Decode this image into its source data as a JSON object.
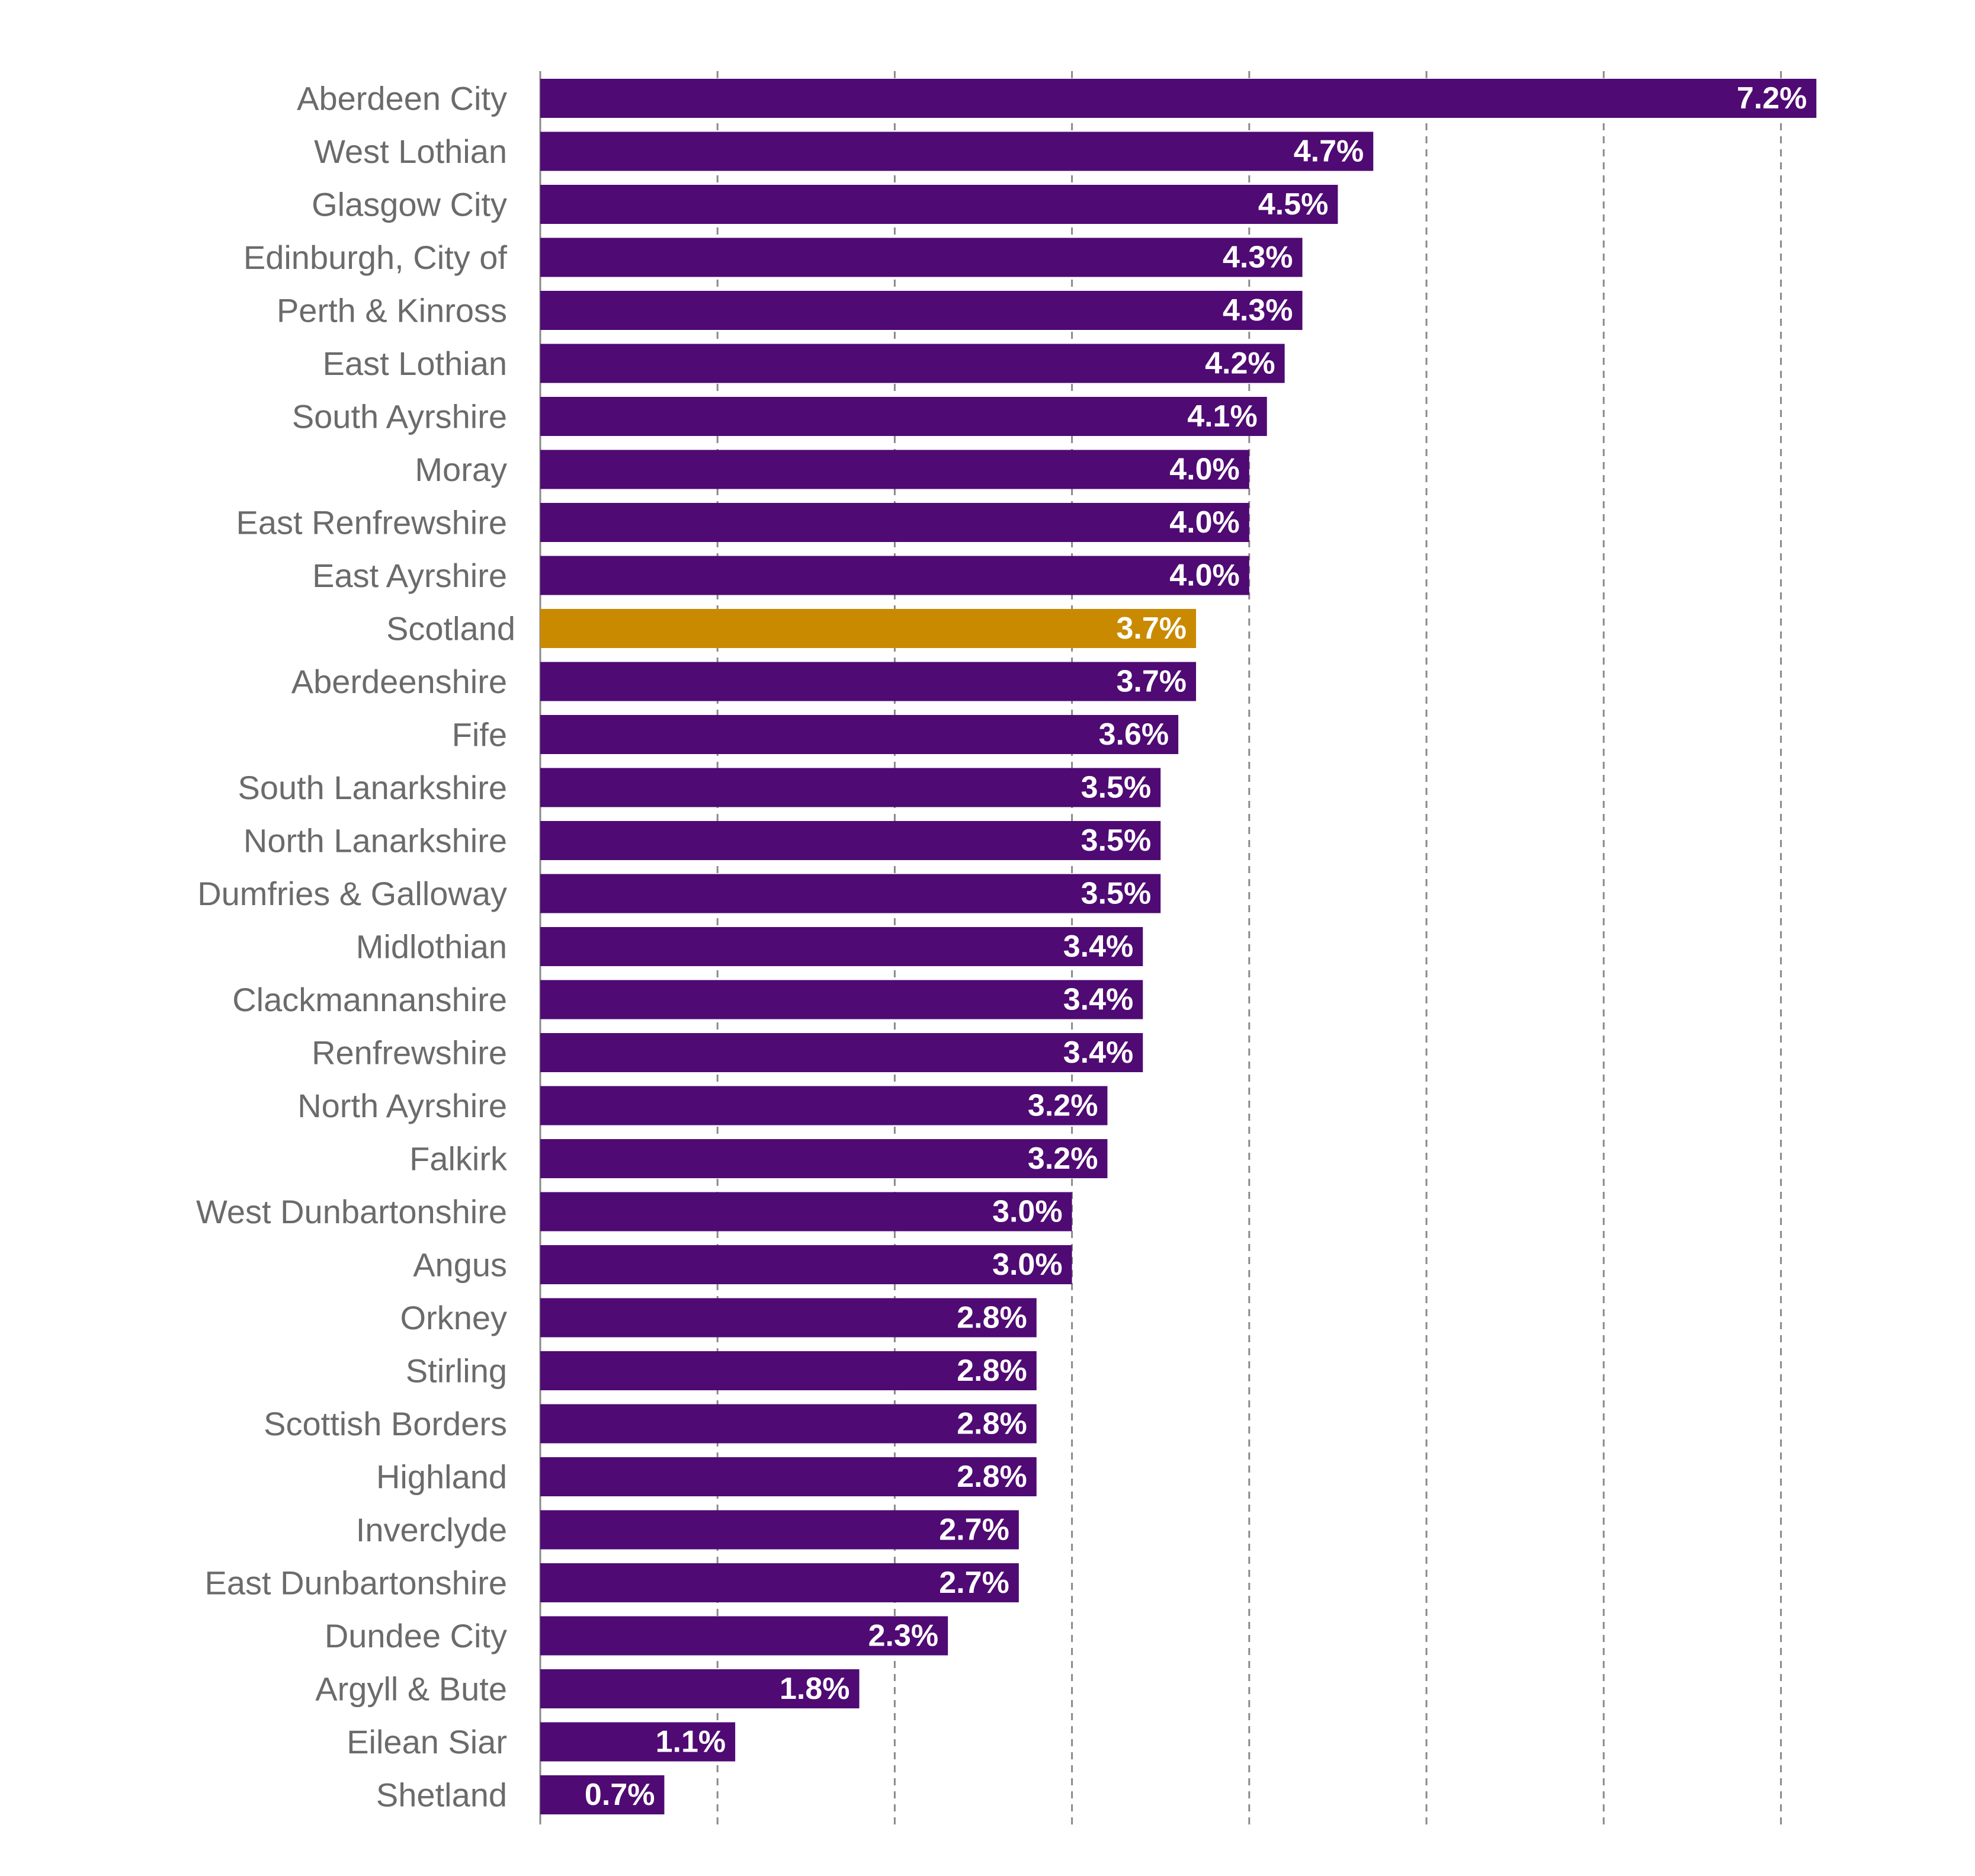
{
  "chart_data": {
    "type": "bar",
    "orientation": "horizontal",
    "title": "",
    "xlabel": "",
    "ylabel": "",
    "xlim": [
      0,
      7.5
    ],
    "grid": true,
    "value_suffix": "%",
    "colors": {
      "default": "#4f0a73",
      "highlight": "#c98a00"
    },
    "highlight_category": "Scotland",
    "categories": [
      "Aberdeen City",
      "West Lothian",
      "Glasgow City",
      "Edinburgh, City of",
      "Perth & Kinross",
      "East Lothian",
      "South Ayrshire",
      "Moray",
      "East Renfrewshire",
      "East Ayrshire",
      "Scotland",
      "Aberdeenshire",
      "Fife",
      "South Lanarkshire",
      "North Lanarkshire",
      "Dumfries & Galloway",
      "Midlothian",
      "Clackmannanshire",
      "Renfrewshire",
      "North Ayrshire",
      "Falkirk",
      "West Dunbartonshire",
      "Angus",
      "Orkney",
      "Stirling",
      "Scottish Borders",
      "Highland",
      "Inverclyde",
      "East Dunbartonshire",
      "Dundee City",
      "Argyll & Bute",
      "Eilean Siar",
      "Shetland"
    ],
    "values": [
      7.2,
      4.7,
      4.5,
      4.3,
      4.3,
      4.2,
      4.1,
      4.0,
      4.0,
      4.0,
      3.7,
      3.7,
      3.6,
      3.5,
      3.5,
      3.5,
      3.4,
      3.4,
      3.4,
      3.2,
      3.2,
      3.0,
      3.0,
      2.8,
      2.8,
      2.8,
      2.8,
      2.7,
      2.7,
      2.3,
      1.8,
      1.1,
      0.7
    ],
    "value_labels": [
      "7.2%",
      "4.7%",
      "4.5%",
      "4.3%",
      "4.3%",
      "4.2%",
      "4.1%",
      "4.0%",
      "4.0%",
      "4.0%",
      "3.7%",
      "3.7%",
      "3.6%",
      "3.5%",
      "3.5%",
      "3.5%",
      "3.4%",
      "3.4%",
      "3.4%",
      "3.2%",
      "3.2%",
      "3.0%",
      "3.0%",
      "2.8%",
      "2.8%",
      "2.8%",
      "2.8%",
      "2.7%",
      "2.7%",
      "2.3%",
      "1.8%",
      "1.1%",
      "0.7%"
    ]
  }
}
